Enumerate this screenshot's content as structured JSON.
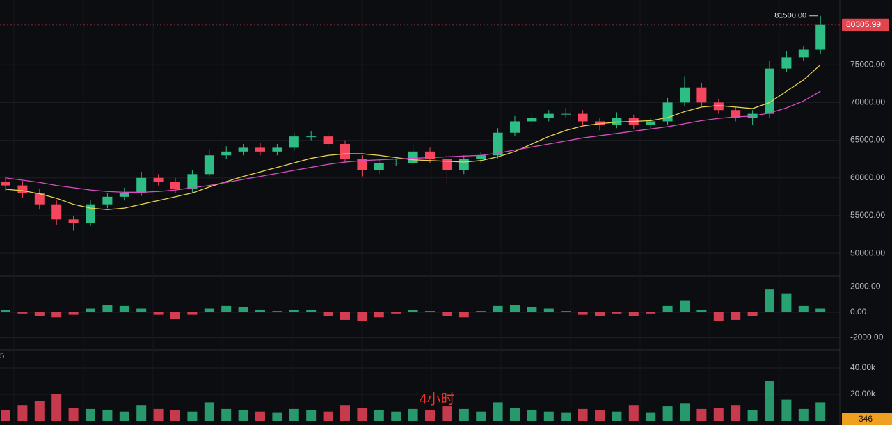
{
  "chart_data": {
    "type": "candlestick",
    "open": [
      59500,
      59000,
      58000,
      56500,
      54500,
      54000,
      56500,
      57500,
      58000,
      60000,
      59500,
      58500,
      60500,
      63000,
      63500,
      64000,
      63500,
      64000,
      65500,
      65500,
      64500,
      62500,
      61000,
      62000,
      62000,
      63500,
      62500,
      61000,
      62500,
      63000,
      66000,
      67500,
      68000,
      68500,
      68500,
      67500,
      67000,
      68000,
      67000,
      67500,
      70000,
      72000,
      70000,
      69000,
      68000,
      68500,
      74500,
      76000,
      77000
    ],
    "high": [
      60200,
      59600,
      58500,
      57000,
      55000,
      57000,
      58000,
      58700,
      60800,
      60500,
      60000,
      61000,
      63800,
      64200,
      64500,
      64600,
      64500,
      66000,
      66200,
      66000,
      65000,
      63000,
      62500,
      62600,
      64300,
      64000,
      63000,
      63000,
      63500,
      66600,
      68200,
      68500,
      69000,
      69300,
      69000,
      68000,
      68700,
      68400,
      68000,
      70600,
      73500,
      72600,
      70500,
      69400,
      69000,
      75500,
      76800,
      77500,
      81500
    ],
    "low": [
      58300,
      57400,
      55800,
      53800,
      53000,
      53600,
      56000,
      57000,
      57600,
      59000,
      58000,
      58000,
      60200,
      62500,
      63000,
      63000,
      63000,
      63600,
      65000,
      64000,
      62000,
      60200,
      60500,
      61600,
      61700,
      62000,
      59300,
      60500,
      62000,
      62600,
      65500,
      67000,
      67500,
      68000,
      67000,
      66300,
      66600,
      66500,
      66600,
      67000,
      69500,
      69500,
      68500,
      67500,
      67000,
      68000,
      74000,
      75500,
      76500
    ],
    "close": [
      59000,
      58000,
      56500,
      54500,
      54000,
      56500,
      57500,
      58000,
      60000,
      59500,
      58500,
      60500,
      63000,
      63500,
      64000,
      63500,
      64000,
      65500,
      65500,
      64500,
      62500,
      61000,
      62000,
      62000,
      63500,
      62500,
      61000,
      62500,
      63000,
      66000,
      67500,
      68000,
      68500,
      68500,
      67500,
      67000,
      68000,
      67000,
      67500,
      70000,
      72000,
      70000,
      69000,
      68000,
      68500,
      74500,
      76000,
      77000,
      80305.99
    ],
    "up_color": "#2ebd85",
    "down_color": "#f6465d",
    "ma_lines": [
      {
        "color": "#e8d44d",
        "values": [
          58500,
          58300,
          57900,
          57300,
          56500,
          56000,
          55800,
          56000,
          56500,
          57000,
          57500,
          58000,
          58800,
          59500,
          60200,
          60800,
          61400,
          62000,
          62600,
          63000,
          63200,
          63200,
          63000,
          62700,
          62400,
          62300,
          62200,
          62100,
          62300,
          62800,
          63500,
          64500,
          65500,
          66300,
          66900,
          67200,
          67400,
          67500,
          67600,
          68000,
          68800,
          69400,
          69600,
          69400,
          69200,
          70000,
          71500,
          73000,
          75000
        ]
      },
      {
        "color": "#d64fc0",
        "values": [
          60000,
          59700,
          59400,
          59000,
          58700,
          58400,
          58200,
          58100,
          58100,
          58200,
          58400,
          58700,
          59000,
          59400,
          59800,
          60200,
          60600,
          61000,
          61400,
          61800,
          62100,
          62300,
          62400,
          62500,
          62600,
          62700,
          62800,
          62900,
          63000,
          63300,
          63700,
          64100,
          64500,
          64900,
          65300,
          65600,
          65900,
          66200,
          66500,
          66800,
          67200,
          67600,
          67900,
          68100,
          68200,
          68600,
          69300,
          70200,
          71500
        ]
      }
    ],
    "ylim": [
      47150,
      83600
    ],
    "yticks": [
      {
        "value": 50000,
        "label": "50000.00"
      },
      {
        "value": 55000,
        "label": "55000.00"
      },
      {
        "value": 60000,
        "label": "60000.00"
      },
      {
        "value": 65000,
        "label": "65000.00"
      },
      {
        "value": 70000,
        "label": "70000.00"
      },
      {
        "value": 75000,
        "label": "75000.00"
      }
    ],
    "high_marker": {
      "value": 81500,
      "label": "81500.00"
    },
    "macd_hist": [
      200,
      -100,
      -300,
      -400,
      -200,
      300,
      600,
      500,
      300,
      -200,
      -500,
      -200,
      300,
      500,
      400,
      200,
      100,
      200,
      200,
      -300,
      -600,
      -700,
      -400,
      -100,
      200,
      100,
      -300,
      -400,
      100,
      500,
      600,
      400,
      300,
      100,
      -200,
      -300,
      -100,
      -300,
      -100,
      500,
      900,
      200,
      -700,
      -600,
      -300,
      1800,
      1500,
      500,
      300
    ],
    "macd_ylim": [
      -2960,
      2850
    ],
    "macd_yticks": [
      {
        "value": 2000,
        "label": "2000.00"
      },
      {
        "value": 0,
        "label": "0.00"
      },
      {
        "value": -2000,
        "label": "-2000.00"
      }
    ],
    "volume": [
      8000,
      12000,
      15000,
      20000,
      10000,
      9000,
      8000,
      7000,
      12000,
      9000,
      8000,
      7000,
      14000,
      9000,
      8000,
      7000,
      6000,
      9000,
      8000,
      7000,
      12000,
      10000,
      8000,
      7000,
      9000,
      8000,
      11000,
      9000,
      7000,
      14000,
      10000,
      8000,
      7000,
      6000,
      9000,
      8000,
      7000,
      12000,
      6000,
      11000,
      13000,
      9000,
      10000,
      12000,
      8000,
      30000,
      16000,
      9000,
      14000
    ],
    "volume_ylim": [
      0,
      50000
    ],
    "volume_yticks": [
      {
        "value": 20000,
        "label": "20.00k"
      },
      {
        "value": 40000,
        "label": "40.00k"
      }
    ],
    "volume_tag": 346,
    "volume_legend": "5",
    "interval_label": "4小时"
  }
}
